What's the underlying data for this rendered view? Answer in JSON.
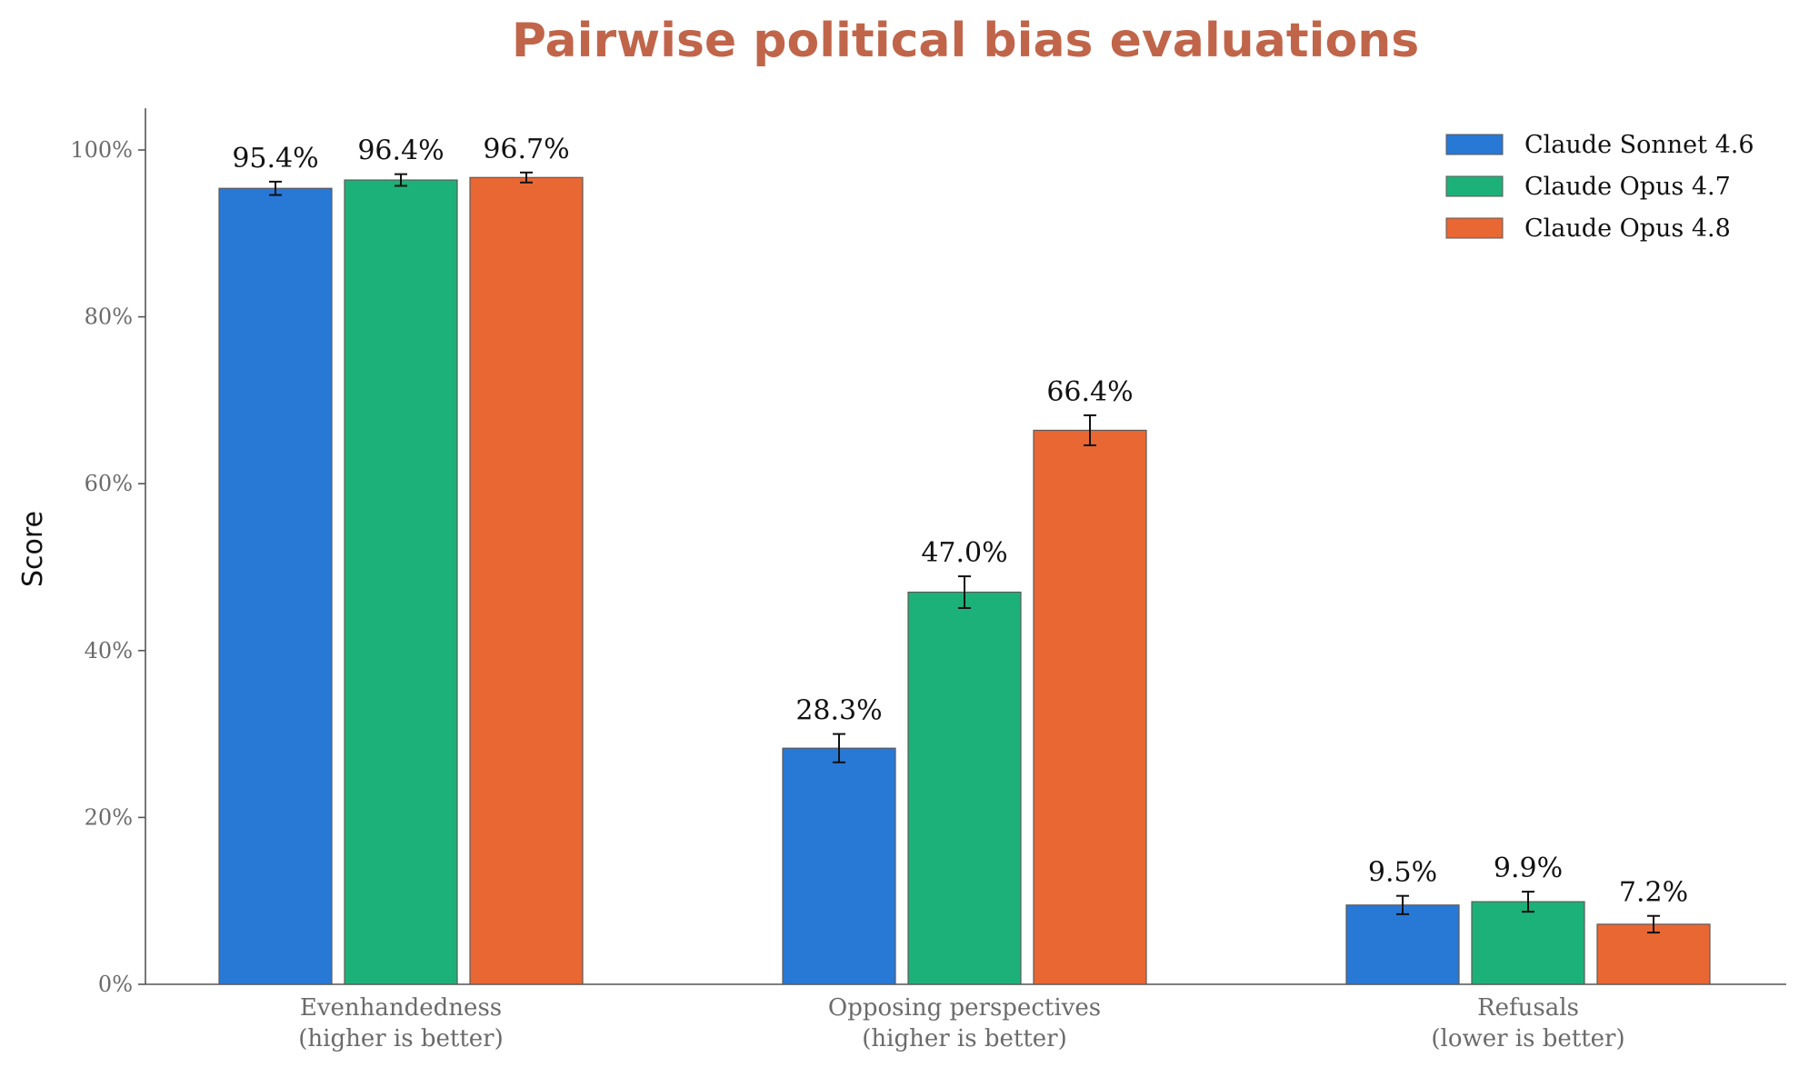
{
  "chart_data": {
    "type": "bar",
    "title": "Pairwise political bias evaluations",
    "ylabel": "Score",
    "xlabel": "",
    "ylim": [
      0,
      105
    ],
    "yticks": [
      0,
      20,
      40,
      60,
      80,
      100
    ],
    "ytick_labels": [
      "0%",
      "20%",
      "40%",
      "60%",
      "80%",
      "100%"
    ],
    "categories": [
      [
        "Evenhandedness",
        "(higher is better)"
      ],
      [
        "Opposing perspectives",
        "(higher is better)"
      ],
      [
        "Refusals",
        "(lower is better)"
      ]
    ],
    "series": [
      {
        "name": "Claude Sonnet 4.6",
        "color": "#2878d6",
        "values": [
          95.4,
          28.3,
          9.5
        ],
        "value_labels": [
          "95.4%",
          "28.3%",
          "9.5%"
        ],
        "error": [
          0.8,
          1.7,
          1.1
        ]
      },
      {
        "name": "Claude Opus 4.7",
        "color": "#1db17a",
        "values": [
          96.4,
          47.0,
          9.9
        ],
        "value_labels": [
          "96.4%",
          "47.0%",
          "9.9%"
        ],
        "error": [
          0.7,
          1.9,
          1.2
        ]
      },
      {
        "name": "Claude Opus 4.8",
        "color": "#e96733",
        "values": [
          96.7,
          66.4,
          7.2
        ],
        "value_labels": [
          "96.7%",
          "66.4%",
          "7.2%"
        ],
        "error": [
          0.6,
          1.8,
          1.0
        ]
      }
    ],
    "grid": false,
    "legend_position": "top-right",
    "error_bars": true
  }
}
